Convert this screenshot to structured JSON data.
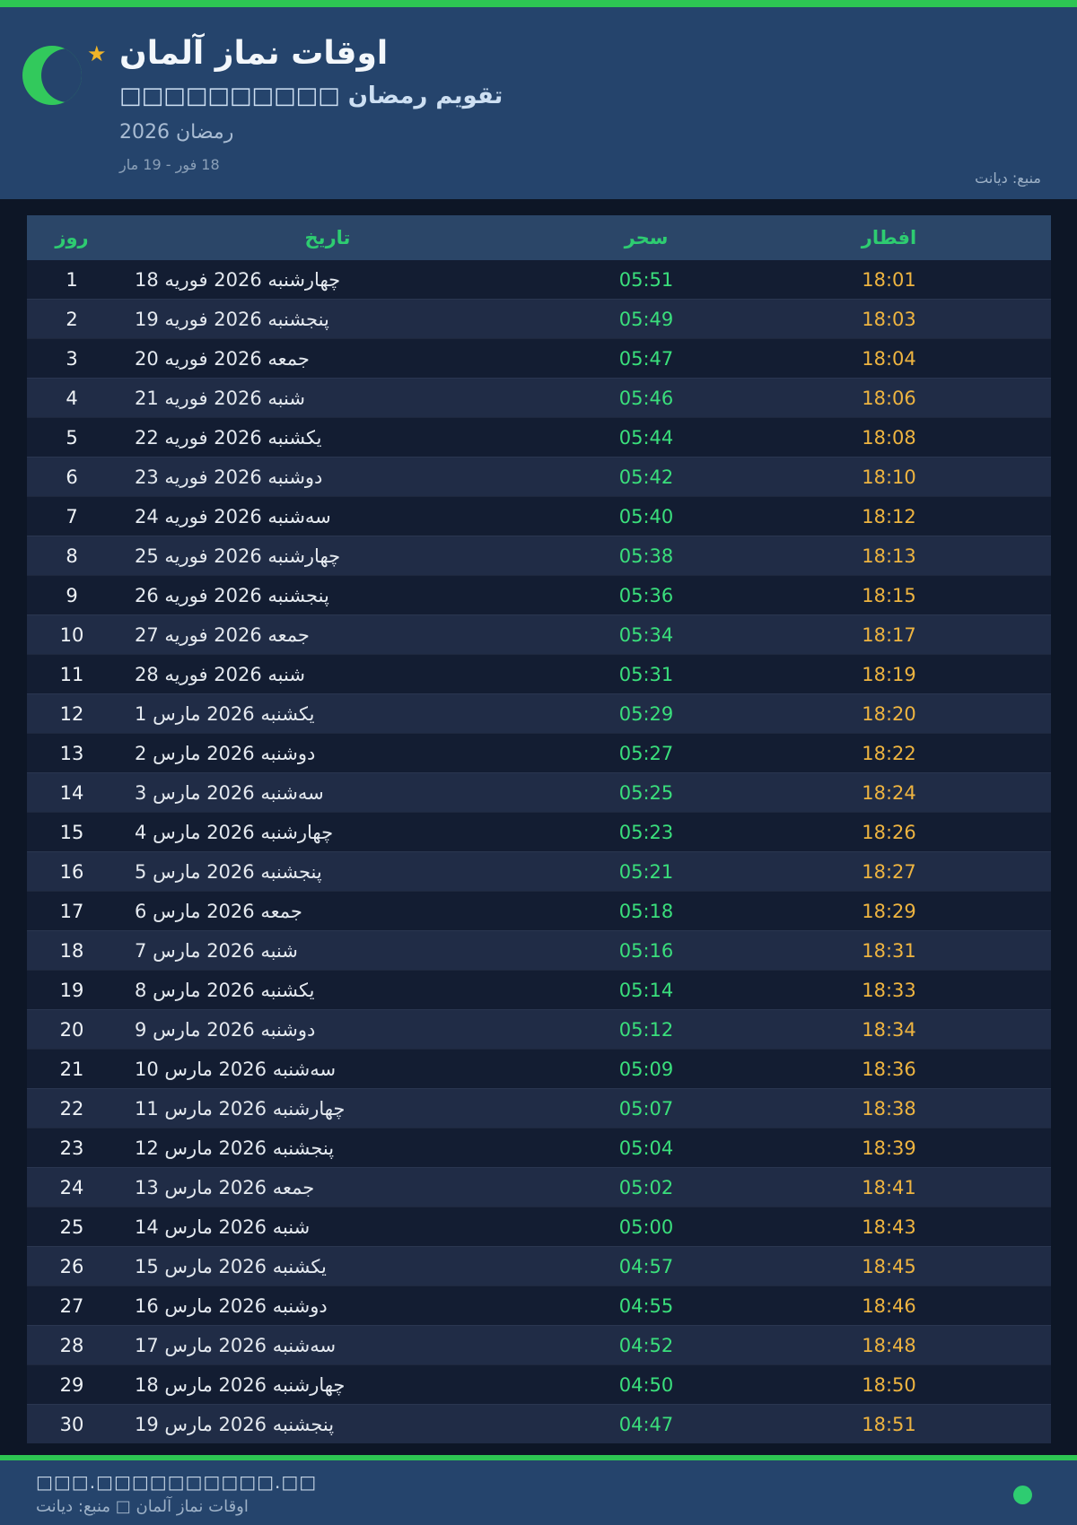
{
  "header": {
    "title": "اوقات نماز آلمان",
    "subtitle": "تقویم رمضان □□□□□□□□□□",
    "season": "رمضان 2026",
    "range": "18 فور - 19 مار",
    "source": "منبع: دیانت"
  },
  "table": {
    "columns": [
      {
        "key": "day",
        "label": "روز"
      },
      {
        "key": "date",
        "label": "تاریخ"
      },
      {
        "key": "suhoor",
        "label": "سحر"
      },
      {
        "key": "iftar",
        "label": "افطار"
      }
    ],
    "rows": [
      {
        "day": "1",
        "date": "18 فوریه 2026 چهارشنبه",
        "suhoor": "05:51",
        "iftar": "18:01"
      },
      {
        "day": "2",
        "date": "19 فوریه 2026 پنجشنبه",
        "suhoor": "05:49",
        "iftar": "18:03"
      },
      {
        "day": "3",
        "date": "20 فوریه 2026 جمعه",
        "suhoor": "05:47",
        "iftar": "18:04"
      },
      {
        "day": "4",
        "date": "21 فوریه 2026 شنبه",
        "suhoor": "05:46",
        "iftar": "18:06"
      },
      {
        "day": "5",
        "date": "22 فوریه 2026 یکشنبه",
        "suhoor": "05:44",
        "iftar": "18:08"
      },
      {
        "day": "6",
        "date": "23 فوریه 2026 دوشنبه",
        "suhoor": "05:42",
        "iftar": "18:10"
      },
      {
        "day": "7",
        "date": "24 فوریه 2026 سه‌شنبه",
        "suhoor": "05:40",
        "iftar": "18:12"
      },
      {
        "day": "8",
        "date": "25 فوریه 2026 چهارشنبه",
        "suhoor": "05:38",
        "iftar": "18:13"
      },
      {
        "day": "9",
        "date": "26 فوریه 2026 پنجشنبه",
        "suhoor": "05:36",
        "iftar": "18:15"
      },
      {
        "day": "10",
        "date": "27 فوریه 2026 جمعه",
        "suhoor": "05:34",
        "iftar": "18:17"
      },
      {
        "day": "11",
        "date": "28 فوریه 2026 شنبه",
        "suhoor": "05:31",
        "iftar": "18:19"
      },
      {
        "day": "12",
        "date": "1 مارس 2026 یکشنبه",
        "suhoor": "05:29",
        "iftar": "18:20"
      },
      {
        "day": "13",
        "date": "2 مارس 2026 دوشنبه",
        "suhoor": "05:27",
        "iftar": "18:22"
      },
      {
        "day": "14",
        "date": "3 مارس 2026 سه‌شنبه",
        "suhoor": "05:25",
        "iftar": "18:24"
      },
      {
        "day": "15",
        "date": "4 مارس 2026 چهارشنبه",
        "suhoor": "05:23",
        "iftar": "18:26"
      },
      {
        "day": "16",
        "date": "5 مارس 2026 پنجشنبه",
        "suhoor": "05:21",
        "iftar": "18:27"
      },
      {
        "day": "17",
        "date": "6 مارس 2026 جمعه",
        "suhoor": "05:18",
        "iftar": "18:29"
      },
      {
        "day": "18",
        "date": "7 مارس 2026 شنبه",
        "suhoor": "05:16",
        "iftar": "18:31"
      },
      {
        "day": "19",
        "date": "8 مارس 2026 یکشنبه",
        "suhoor": "05:14",
        "iftar": "18:33"
      },
      {
        "day": "20",
        "date": "9 مارس 2026 دوشنبه",
        "suhoor": "05:12",
        "iftar": "18:34"
      },
      {
        "day": "21",
        "date": "10 مارس 2026 سه‌شنبه",
        "suhoor": "05:09",
        "iftar": "18:36"
      },
      {
        "day": "22",
        "date": "11 مارس 2026 چهارشنبه",
        "suhoor": "05:07",
        "iftar": "18:38"
      },
      {
        "day": "23",
        "date": "12 مارس 2026 پنجشنبه",
        "suhoor": "05:04",
        "iftar": "18:39"
      },
      {
        "day": "24",
        "date": "13 مارس 2026 جمعه",
        "suhoor": "05:02",
        "iftar": "18:41"
      },
      {
        "day": "25",
        "date": "14 مارس 2026 شنبه",
        "suhoor": "05:00",
        "iftar": "18:43"
      },
      {
        "day": "26",
        "date": "15 مارس 2026 یکشنبه",
        "suhoor": "04:57",
        "iftar": "18:45"
      },
      {
        "day": "27",
        "date": "16 مارس 2026 دوشنبه",
        "suhoor": "04:55",
        "iftar": "18:46"
      },
      {
        "day": "28",
        "date": "17 مارس 2026 سه‌شنبه",
        "suhoor": "04:52",
        "iftar": "18:48"
      },
      {
        "day": "29",
        "date": "18 مارس 2026 چهارشنبه",
        "suhoor": "04:50",
        "iftar": "18:50"
      },
      {
        "day": "30",
        "date": "19 مارس 2026 پنجشنبه",
        "suhoor": "04:47",
        "iftar": "18:51"
      }
    ]
  },
  "footer": {
    "url": "□□□.□□□□□□□□□□.□□",
    "credit": "اوقات نماز آلمان □ منبع: دیانت"
  },
  "icons": {
    "logo_moon": "crescent-moon",
    "logo_star": "star",
    "footer_dot": "green-status-dot",
    "star_glyph": "★"
  },
  "colors": {
    "accent_green": "#2dc653",
    "header_label_green": "#2ecc71",
    "suhoor_green": "#3adf7c",
    "iftar_gold": "#eeb440",
    "panel_blue": "#25446c",
    "table_header_blue": "#2b4668",
    "row_dark": "#131d32",
    "row_light": "#202c46",
    "page_bg": "#0d1626",
    "star_gold": "#f0b429"
  }
}
